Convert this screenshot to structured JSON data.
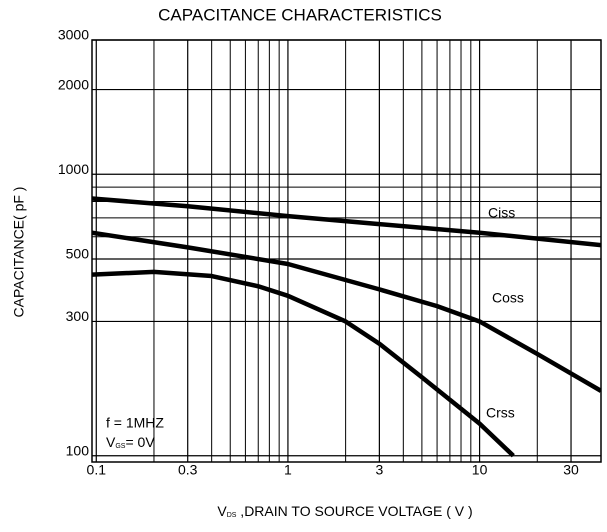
{
  "chart_data": {
    "type": "line",
    "title": "CAPACITANCE CHARACTERISTICS",
    "ylabel": "CAPACITANCE( pF )",
    "xlabel": {
      "symbol": "V",
      "sub": "DS",
      "text": " ,DRAIN TO SOURCE VOLTAGE ( V )"
    },
    "xscale": "log",
    "yscale": "log",
    "grid": true,
    "xlim": [
      0.095,
      43
    ],
    "ylim": [
      95,
      3000
    ],
    "xticks": [
      0.1,
      0.3,
      1,
      3,
      10,
      30
    ],
    "xminor": [
      0.2,
      0.4,
      0.5,
      0.6,
      0.7,
      0.8,
      0.9,
      2,
      4,
      5,
      6,
      7,
      8,
      9,
      20
    ],
    "yticks": [
      100,
      300,
      500,
      1000,
      2000,
      3000
    ],
    "yminor": [
      600,
      700,
      800,
      900
    ],
    "series": [
      {
        "name": "Ciss",
        "color": "#000000",
        "x": [
          0.095,
          0.3,
          1,
          3,
          10,
          43
        ],
        "values": [
          820,
          770,
          710,
          665,
          620,
          560
        ]
      },
      {
        "name": "Coss",
        "color": "#000000",
        "x": [
          0.095,
          0.3,
          1,
          3,
          6,
          10,
          20,
          43
        ],
        "values": [
          620,
          550,
          480,
          390,
          340,
          300,
          230,
          170
        ]
      },
      {
        "name": "Crss",
        "color": "#000000",
        "x": [
          0.095,
          0.2,
          0.4,
          0.7,
          1,
          2,
          3,
          5,
          10,
          15
        ],
        "values": [
          440,
          450,
          435,
          400,
          370,
          300,
          250,
          190,
          130,
          100
        ]
      }
    ],
    "annotations": {
      "freq": "f = 1MHZ",
      "bias": {
        "symbol": "V",
        "sub": "GS",
        "text": "= 0V"
      }
    }
  }
}
